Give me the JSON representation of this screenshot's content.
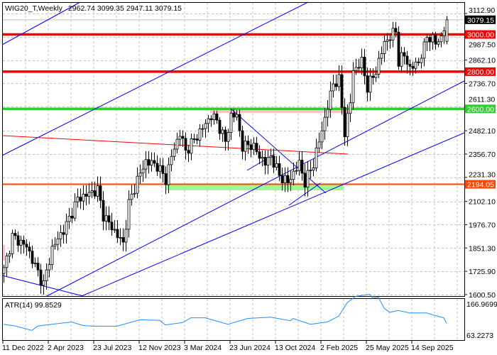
{
  "header": {
    "symbol": "WIG20_T,Weekly",
    "open": "2962.74",
    "high": "3099.35",
    "low": "2947.11",
    "close": "3079.15"
  },
  "price_axis": [
    "3112.90",
    "2987.50",
    "2862.10",
    "2736.70",
    "2611.30",
    "2482.10",
    "2356.70",
    "2231.30",
    "2102.10",
    "1976.70",
    "1851.30",
    "1725.90",
    "1600.50"
  ],
  "current_price": {
    "label": "3079.15",
    "value": 3079.15
  },
  "levels": [
    {
      "label": "3000.00",
      "value": 3000,
      "color": "#ff0000"
    },
    {
      "label": "2800.00",
      "value": 2800,
      "color": "#ff0000"
    },
    {
      "label": "2600.00",
      "value": 2600,
      "color": "#33cc33"
    },
    {
      "label": "2194.05",
      "value": 2194.05,
      "color": "#ff4500"
    }
  ],
  "atr": {
    "label": "ATR(14) 99.8529",
    "axis_max": "166.9699",
    "axis_min": "63.2273",
    "color": "#1e90ff"
  },
  "x_axis": [
    "11 Dec 2022",
    "2 Apr 2023",
    "23 Jul 2023",
    "12 Nov 2023",
    "3 Mar 2024",
    "23 Jun 2024",
    "13 Oct 2024",
    "2 Feb 2025",
    "25 May 2025",
    "14 Sep 2025"
  ],
  "chart_data": {
    "type": "candlestick",
    "title": "WIG20_T,Weekly",
    "ylim": [
      1600.5,
      3112.9
    ],
    "last_candle": {
      "open": 2962.74,
      "high": 3099.35,
      "low": 2947.11,
      "close": 3079.15
    },
    "close_keypoints_week_price": [
      [
        0,
        1734
      ],
      [
        3,
        1913
      ],
      [
        8,
        1860
      ],
      [
        13,
        1684
      ],
      [
        14,
        1657
      ],
      [
        17,
        1849
      ],
      [
        22,
        1975
      ],
      [
        26,
        2116
      ],
      [
        33,
        2165
      ],
      [
        35,
        2028
      ],
      [
        38,
        1963
      ],
      [
        42,
        1875
      ],
      [
        44,
        2089
      ],
      [
        47,
        2219
      ],
      [
        50,
        2318
      ],
      [
        54,
        2295
      ],
      [
        57,
        2219
      ],
      [
        59,
        2345
      ],
      [
        62,
        2471
      ],
      [
        64,
        2372
      ],
      [
        67,
        2433
      ],
      [
        73,
        2563
      ],
      [
        75,
        2536
      ],
      [
        78,
        2422
      ],
      [
        80,
        2563
      ],
      [
        82,
        2563
      ],
      [
        84,
        2395
      ],
      [
        87,
        2410
      ],
      [
        92,
        2307
      ],
      [
        94,
        2345
      ],
      [
        97,
        2242
      ],
      [
        100,
        2204
      ],
      [
        104,
        2307
      ],
      [
        106,
        2204
      ],
      [
        109,
        2307
      ],
      [
        112,
        2486
      ],
      [
        114,
        2612
      ],
      [
        116,
        2738
      ],
      [
        118,
        2753
      ],
      [
        120,
        2471
      ],
      [
        122,
        2639
      ],
      [
        123,
        2804
      ],
      [
        126,
        2853
      ],
      [
        128,
        2715
      ],
      [
        131,
        2804
      ],
      [
        134,
        2956
      ],
      [
        138,
        3021
      ],
      [
        139,
        2853
      ],
      [
        141,
        2891
      ],
      [
        143,
        2815
      ],
      [
        146,
        2853
      ],
      [
        148,
        2929
      ],
      [
        149,
        2995
      ],
      [
        152,
        2956
      ],
      [
        154,
        2983
      ],
      [
        156,
        3079.15
      ]
    ],
    "atr_series_week_value": [
      [
        0,
        97
      ],
      [
        4,
        92
      ],
      [
        10,
        78
      ],
      [
        12,
        91
      ],
      [
        15,
        95
      ],
      [
        24,
        104
      ],
      [
        28,
        93
      ],
      [
        32,
        91
      ],
      [
        40,
        91
      ],
      [
        48,
        111
      ],
      [
        55,
        109
      ],
      [
        57,
        95
      ],
      [
        63,
        102
      ],
      [
        66,
        117
      ],
      [
        71,
        117
      ],
      [
        79,
        97
      ],
      [
        86,
        115
      ],
      [
        94,
        119
      ],
      [
        101,
        108
      ],
      [
        102,
        115
      ],
      [
        108,
        97
      ],
      [
        114,
        104
      ],
      [
        118,
        122
      ],
      [
        121,
        164
      ],
      [
        124,
        184
      ],
      [
        129,
        190
      ],
      [
        130,
        178
      ],
      [
        132,
        181
      ],
      [
        134,
        147
      ],
      [
        136,
        134
      ],
      [
        139,
        140
      ],
      [
        143,
        132
      ],
      [
        149,
        132
      ],
      [
        152,
        124
      ],
      [
        155,
        117
      ],
      [
        156,
        99.85
      ]
    ]
  }
}
